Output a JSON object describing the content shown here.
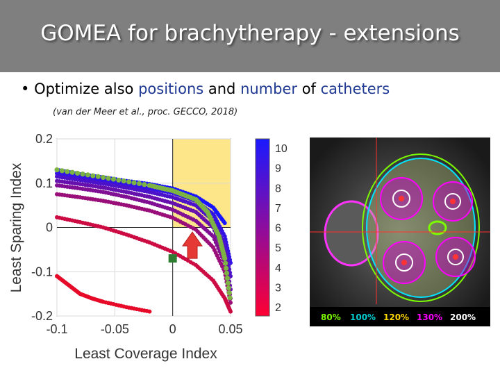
{
  "slide": {
    "title": "GOMEA for brachytherapy - extensions",
    "bullet_prefix": "Optimize also ",
    "bullet_hl1": "positions",
    "bullet_mid1": " and ",
    "bullet_hl2": "number",
    "bullet_mid2": " of ",
    "bullet_hl3": "catheters",
    "citation": "(van der Meer et al., proc. GECCO, 2018)"
  },
  "colors": {
    "title_bg": "#7f7f7f",
    "highlight_text": "#1f3a93",
    "feasible_region": "#fde68a",
    "marker_square": "#2e7d32",
    "arrow": "#e53935",
    "green_front": "#7cb342"
  },
  "chart_data": {
    "type": "scatter",
    "xlabel": "Least Coverage Index",
    "ylabel": "Least Sparing Index",
    "xlim": [
      -0.1,
      0.05
    ],
    "ylim": [
      -0.2,
      0.2
    ],
    "xticks": [
      "-0.1",
      "-0.05",
      "0",
      "0.05"
    ],
    "yticks": [
      "0.2",
      "0.1",
      "0",
      "-0.1",
      "-0.2"
    ],
    "grid": true,
    "shaded_region": {
      "x": [
        0,
        0.05
      ],
      "y": [
        0,
        0.2
      ]
    },
    "colorbar": {
      "label_ticks": [
        "10",
        "9",
        "8",
        "7",
        "6",
        "5",
        "4",
        "3",
        "2"
      ],
      "range": [
        2,
        10
      ]
    },
    "series": [
      {
        "catheters": 10,
        "points": [
          [
            -0.1,
            0.13
          ],
          [
            -0.08,
            0.12
          ],
          [
            -0.06,
            0.113
          ],
          [
            -0.04,
            0.105
          ],
          [
            -0.02,
            0.098
          ],
          [
            0,
            0.088
          ],
          [
            0.02,
            0.07
          ],
          [
            0.035,
            0.045
          ],
          [
            0.045,
            0.01
          ]
        ]
      },
      {
        "catheters": 9,
        "points": [
          [
            -0.1,
            0.122
          ],
          [
            -0.08,
            0.114
          ],
          [
            -0.06,
            0.106
          ],
          [
            -0.04,
            0.097
          ],
          [
            -0.02,
            0.088
          ],
          [
            0,
            0.078
          ],
          [
            0.02,
            0.06
          ],
          [
            0.035,
            0.03
          ],
          [
            0.045,
            -0.02
          ],
          [
            0.05,
            -0.08
          ]
        ]
      },
      {
        "catheters": 8,
        "points": [
          [
            -0.1,
            0.115
          ],
          [
            -0.08,
            0.107
          ],
          [
            -0.06,
            0.099
          ],
          [
            -0.04,
            0.09
          ],
          [
            -0.02,
            0.08
          ],
          [
            0,
            0.068
          ],
          [
            0.02,
            0.05
          ],
          [
            0.035,
            0.015
          ],
          [
            0.045,
            -0.04
          ],
          [
            0.05,
            -0.11
          ]
        ]
      },
      {
        "catheters": 7,
        "points": [
          [
            -0.1,
            0.105
          ],
          [
            -0.08,
            0.098
          ],
          [
            -0.06,
            0.09
          ],
          [
            -0.04,
            0.08
          ],
          [
            -0.02,
            0.069
          ],
          [
            0,
            0.055
          ],
          [
            0.02,
            0.035
          ],
          [
            0.035,
            0
          ],
          [
            0.045,
            -0.06
          ],
          [
            0.05,
            -0.14
          ]
        ]
      },
      {
        "catheters": 6,
        "points": [
          [
            -0.1,
            0.095
          ],
          [
            -0.08,
            0.088
          ],
          [
            -0.06,
            0.08
          ],
          [
            -0.04,
            0.069
          ],
          [
            -0.02,
            0.056
          ],
          [
            0,
            0.04
          ],
          [
            0.02,
            0.015
          ],
          [
            0.035,
            -0.02
          ],
          [
            0.045,
            -0.08
          ],
          [
            0.05,
            -0.16
          ]
        ]
      },
      {
        "catheters": 5,
        "points": [
          [
            -0.1,
            0.075
          ],
          [
            -0.08,
            0.068
          ],
          [
            -0.06,
            0.06
          ],
          [
            -0.04,
            0.05
          ],
          [
            -0.02,
            0.038
          ],
          [
            0,
            0.022
          ],
          [
            0.02,
            -0.005
          ],
          [
            0.035,
            -0.045
          ],
          [
            0.045,
            -0.1
          ],
          [
            0.05,
            -0.17
          ]
        ]
      },
      {
        "catheters": 3,
        "points": [
          [
            -0.1,
            0.023
          ],
          [
            -0.08,
            0.012
          ],
          [
            -0.06,
            0
          ],
          [
            -0.04,
            -0.016
          ],
          [
            -0.02,
            -0.034
          ],
          [
            0,
            -0.055
          ],
          [
            0.02,
            -0.085
          ],
          [
            0.035,
            -0.12
          ],
          [
            0.045,
            -0.16
          ],
          [
            0.05,
            -0.19
          ]
        ]
      },
      {
        "catheters": 2,
        "points": [
          [
            -0.1,
            -0.11
          ],
          [
            -0.09,
            -0.13
          ],
          [
            -0.08,
            -0.15
          ],
          [
            -0.07,
            -0.16
          ],
          [
            -0.06,
            -0.168
          ],
          [
            -0.04,
            -0.18
          ],
          [
            -0.02,
            -0.19
          ]
        ]
      }
    ],
    "highlight_front": [
      [
        -0.1,
        0.13
      ],
      [
        -0.06,
        0.113
      ],
      [
        -0.02,
        0.095
      ],
      [
        0,
        0.083
      ],
      [
        0.02,
        0.063
      ],
      [
        0.03,
        0.035
      ],
      [
        0.04,
        -0.02
      ],
      [
        0.045,
        -0.07
      ],
      [
        0.05,
        -0.17
      ]
    ],
    "marker": {
      "x": 0,
      "y": -0.07
    }
  },
  "mri": {
    "legend": [
      {
        "label": "80%",
        "color": "#7CFC00"
      },
      {
        "label": "100%",
        "color": "#00CED1"
      },
      {
        "label": "120%",
        "color": "#FFD700"
      },
      {
        "label": "130%",
        "color": "#FF00FF"
      },
      {
        "label": "200%",
        "color": "#FFFFFF"
      }
    ]
  }
}
